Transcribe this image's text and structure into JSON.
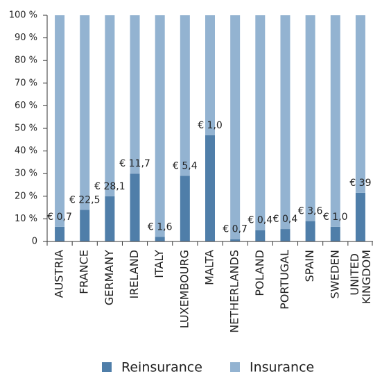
{
  "chart_data": {
    "type": "stacked_bar",
    "categories": [
      "AUSTRIA",
      "FRANCE",
      "GERMANY",
      "IRELAND",
      "ITALY",
      "LUXEMBOURG",
      "MALTA",
      "NETHERLANDS",
      "POLAND",
      "PORTUGAL",
      "SPAIN",
      "SWEDEN",
      "UNITED KINGDOM"
    ],
    "series": [
      {
        "name": "Reinsurance",
        "color": "#4f7ea9",
        "values": [
          6.5,
          14,
          20,
          30,
          2,
          29,
          47,
          1,
          5,
          5.5,
          9,
          6.5,
          21.5
        ]
      },
      {
        "name": "Insurance",
        "color": "#93b3d1",
        "values": [
          93.5,
          86,
          80,
          70,
          98,
          71,
          53,
          99,
          95,
          94.5,
          91,
          93.5,
          78.5
        ]
      }
    ],
    "annotations": [
      "€ 0,7",
      "€ 22,5",
      "€ 28,1",
      "€ 11,7",
      "€ 1,6",
      "€ 5,4",
      "€ 1,0",
      "€ 0,7",
      "€ 0,4",
      "€ 0,4",
      "€ 3,6",
      "€ 1,0",
      "€ 39"
    ],
    "ylim": [
      0,
      100
    ],
    "yticks": [
      0,
      {
        "value": 10,
        "label": "10 %"
      },
      {
        "value": 20,
        "label": "20 %"
      },
      {
        "value": 30,
        "label": "30 %"
      },
      {
        "value": 40,
        "label": "40 %"
      },
      {
        "value": 50,
        "label": "50 %"
      },
      {
        "value": 60,
        "label": "60 %"
      },
      {
        "value": 70,
        "label": "70 %"
      },
      {
        "value": 80,
        "label": "80 %"
      },
      {
        "value": 90,
        "label": "90 %"
      },
      {
        "value": 100,
        "label": "100 %"
      }
    ],
    "grid": false,
    "legend": "bottom"
  }
}
